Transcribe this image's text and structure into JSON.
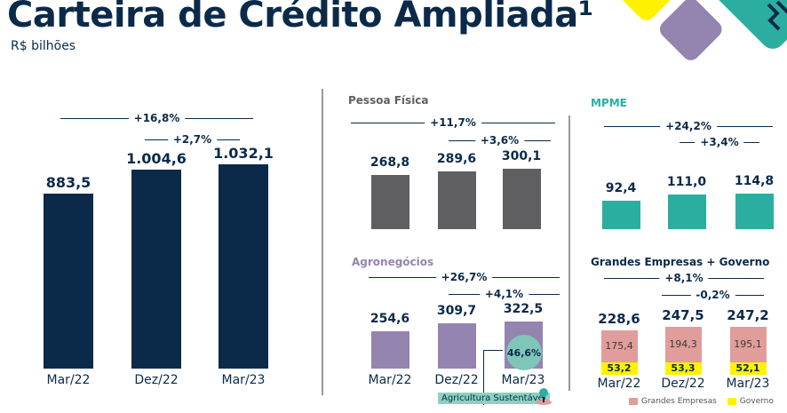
{
  "title": "Carteira de Crédito Ampliada¹",
  "subtitle": "R$ bilhões",
  "colors": {
    "navy": "#0b2a4a",
    "gray": "#5f5f62",
    "purple": "#9484b0",
    "teal": "#2bae9f",
    "pink": "#e09d9b",
    "yellow": "#fff200"
  },
  "chart_data": [
    {
      "type": "bar",
      "title": "",
      "categories": [
        "Mar/22",
        "Dez/22",
        "Mar/23"
      ],
      "values": [
        883.5,
        1004.6,
        1032.1
      ],
      "labels": [
        "883,5",
        "1.004,6",
        "1.032,1"
      ],
      "growth": [
        "+16,8%",
        "+2,7%"
      ]
    },
    {
      "type": "bar",
      "title": "Pessoa Física",
      "categories": [
        "Mar/22",
        "Dez/22",
        "Mar/23"
      ],
      "values": [
        268.8,
        289.6,
        300.1
      ],
      "labels": [
        "268,8",
        "289,6",
        "300,1"
      ],
      "growth": [
        "+11,7%",
        "+3,6%"
      ]
    },
    {
      "type": "bar",
      "title": "MPME",
      "categories": [
        "Mar/22",
        "Dez/22",
        "Mar/23"
      ],
      "values": [
        92.4,
        111.0,
        114.8
      ],
      "labels": [
        "92,4",
        "111,0",
        "114,8"
      ],
      "growth": [
        "+24,2%",
        "+3,4%"
      ]
    },
    {
      "type": "bar",
      "title": "Agronegócios",
      "categories": [
        "Mar/22",
        "Dez/22",
        "Mar/23"
      ],
      "values": [
        254.6,
        309.7,
        322.5
      ],
      "labels": [
        "254,6",
        "309,7",
        "322,5"
      ],
      "growth": [
        "+26,7%",
        "+4,1%"
      ],
      "annotation": {
        "value": "46,6%",
        "label": "Agricultura Sustentável"
      }
    },
    {
      "type": "bar",
      "stacked": true,
      "title": "Grandes Empresas + Governo",
      "categories": [
        "Mar/22",
        "Dez/22",
        "Mar/23"
      ],
      "totals": [
        228.6,
        247.5,
        247.2
      ],
      "total_labels": [
        "228,6",
        "247,5",
        "247,2"
      ],
      "series": [
        {
          "name": "Grandes Empresas",
          "values": [
            175.4,
            194.3,
            195.1
          ],
          "labels": [
            "175,4",
            "194,3",
            "195,1"
          ]
        },
        {
          "name": "Governo",
          "values": [
            53.2,
            53.3,
            52.1
          ],
          "labels": [
            "53,2",
            "53,3",
            "52,1"
          ]
        }
      ],
      "growth": [
        "+8,1%",
        "-0,2%"
      ]
    }
  ]
}
